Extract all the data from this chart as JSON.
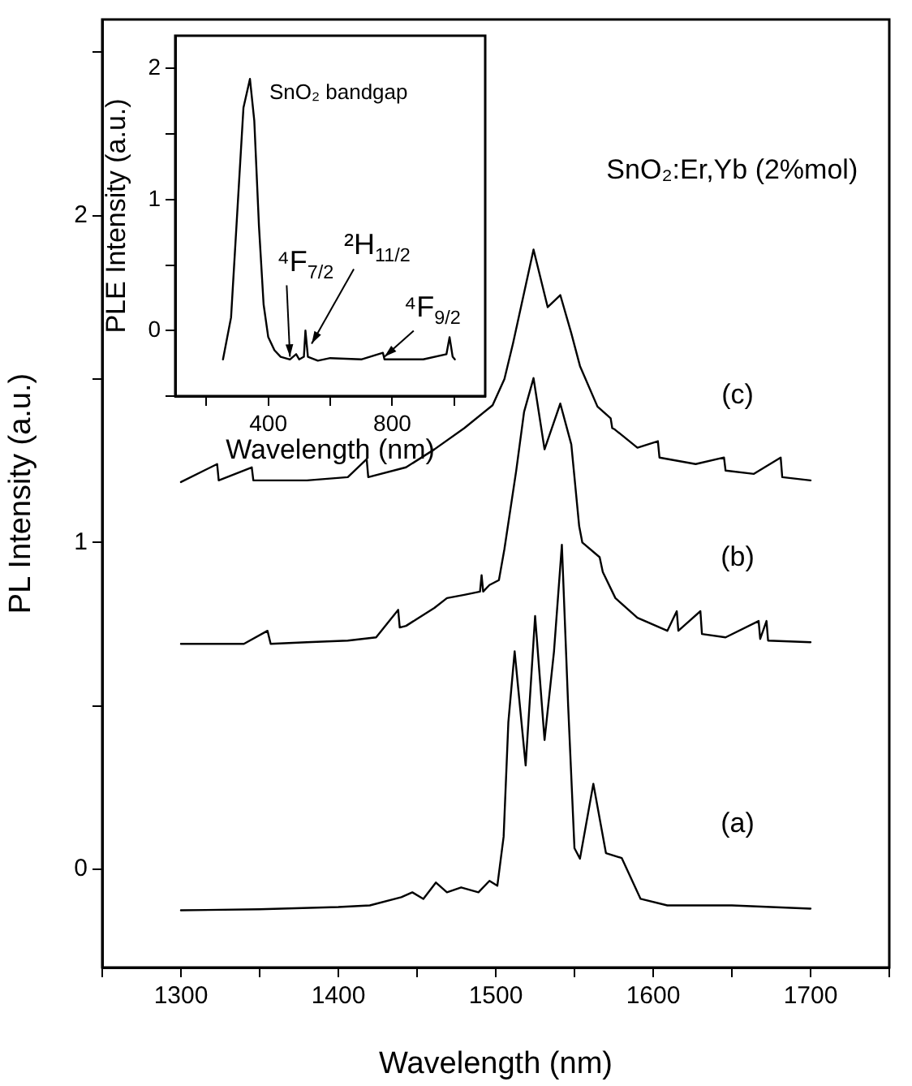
{
  "chart_data": [
    {
      "type": "line",
      "xlabel": "Wavelength (nm)",
      "ylabel": "PL Intensity (a.u.)",
      "xlim": [
        1250,
        1750
      ],
      "xticks": [
        {
          "value": 1250,
          "label": null
        },
        1300,
        {
          "value": 1350,
          "label": null
        },
        1400,
        {
          "value": 1450,
          "label": null
        },
        1500,
        {
          "value": 1550,
          "label": null
        },
        1600,
        {
          "value": 1650,
          "label": null
        },
        1700,
        {
          "value": 1750,
          "label": null
        }
      ],
      "ylim": [
        -0.3,
        2.6
      ],
      "yticks": [
        0,
        {
          "value": 0.5,
          "label": null
        },
        1,
        {
          "value": 1.5,
          "label": null
        },
        2,
        {
          "value": 2.5,
          "label": null
        }
      ],
      "series": [
        {
          "name": "(a)",
          "color": "#000000",
          "x": [
            1300,
            1350,
            1400,
            1420,
            1440,
            1447,
            1454,
            1462,
            1469,
            1478,
            1489,
            1496,
            1501,
            1505,
            1508,
            1512,
            1519,
            1525,
            1531,
            1537,
            1542,
            1546,
            1550,
            1553.5,
            1562,
            1570,
            1580,
            1592,
            1609,
            1650,
            1700
          ],
          "values": [
            -0.125,
            -0.122,
            -0.115,
            -0.11,
            -0.085,
            -0.07,
            -0.09,
            -0.04,
            -0.07,
            -0.055,
            -0.07,
            -0.035,
            -0.05,
            0.1,
            0.45,
            0.667,
            0.318,
            0.775,
            0.396,
            0.667,
            0.993,
            0.5,
            0.065,
            0.033,
            0.262,
            0.05,
            0.035,
            -0.09,
            -0.11,
            -0.11,
            -0.12
          ]
        },
        {
          "name": "(b)",
          "color": "#000000",
          "x": [
            1300,
            1340,
            1355,
            1357,
            1380,
            1406,
            1424,
            1438,
            1439,
            1443,
            1461,
            1469,
            1480,
            1490,
            1491,
            1492,
            1496,
            1502,
            1505.5,
            1513,
            1518,
            1524,
            1531,
            1541,
            1548,
            1553,
            1555,
            1566,
            1568,
            1576,
            1590,
            1609,
            1615,
            1616,
            1630,
            1631,
            1646,
            1667,
            1668,
            1672,
            1673,
            1700
          ],
          "values": [
            0.69,
            0.69,
            0.73,
            0.69,
            0.695,
            0.7,
            0.71,
            0.794,
            0.74,
            0.745,
            0.8,
            0.83,
            0.84,
            0.85,
            0.9,
            0.85,
            0.87,
            0.885,
            0.98,
            1.22,
            1.4,
            1.503,
            1.285,
            1.425,
            1.3,
            1.05,
            1.0,
            0.955,
            0.91,
            0.83,
            0.77,
            0.73,
            0.79,
            0.73,
            0.79,
            0.72,
            0.71,
            0.76,
            0.705,
            0.76,
            0.7,
            0.695
          ]
        },
        {
          "name": "(c)",
          "color": "#000000",
          "x": [
            1300,
            1323,
            1324,
            1345,
            1346,
            1380,
            1406,
            1418,
            1419,
            1443,
            1461,
            1480,
            1498,
            1505.5,
            1511,
            1524,
            1533,
            1541,
            1548,
            1553.5,
            1564.6,
            1573,
            1574,
            1575.6,
            1590,
            1603,
            1604,
            1627,
            1645,
            1646,
            1664,
            1681,
            1682,
            1700
          ],
          "values": [
            1.185,
            1.24,
            1.19,
            1.23,
            1.19,
            1.19,
            1.2,
            1.255,
            1.2,
            1.23,
            1.285,
            1.35,
            1.42,
            1.5,
            1.61,
            1.896,
            1.72,
            1.757,
            1.64,
            1.54,
            1.416,
            1.38,
            1.35,
            1.346,
            1.29,
            1.31,
            1.26,
            1.24,
            1.26,
            1.22,
            1.21,
            1.26,
            1.2,
            1.19
          ]
        }
      ],
      "annotations": [
        "SnO₂:Er,Yb (2%mol)"
      ]
    },
    {
      "type": "line",
      "xlabel": "Wavelength (nm)",
      "ylabel": "PLE Intensity (a.u.)",
      "xlim": [
        100,
        1100
      ],
      "xticks": [
        {
          "value": 200,
          "label": null
        },
        400,
        {
          "value": 600,
          "label": null
        },
        800,
        {
          "value": 1000,
          "label": null
        }
      ],
      "ylim": [
        -0.5,
        2.25
      ],
      "yticks": [
        {
          "value": -0.5,
          "label": null
        },
        0,
        {
          "value": 0.5,
          "label": null
        },
        1,
        {
          "value": 1.5,
          "label": null
        },
        2
      ],
      "series": [
        {
          "color": "#000000",
          "x": [
            254,
            280,
            300,
            320,
            341,
            355,
            370,
            385,
            400,
            420,
            440,
            470,
            490,
            500,
            515,
            520,
            528,
            560,
            600,
            700,
            770,
            775,
            900,
            975,
            985,
            995,
            1002
          ],
          "values": [
            -0.22,
            0.1,
            0.9,
            1.7,
            1.92,
            1.6,
            0.8,
            0.2,
            -0.05,
            -0.15,
            -0.2,
            -0.22,
            -0.18,
            -0.22,
            -0.2,
            0.0,
            -0.2,
            -0.23,
            -0.21,
            -0.22,
            -0.17,
            -0.22,
            -0.22,
            -0.18,
            -0.05,
            -0.2,
            -0.22
          ]
        }
      ],
      "annotations": [
        "SnO₂ bandgap",
        {
          "text": "⁴F$_{7/2}$",
          "x": 470,
          "y": -0.2
        },
        {
          "text": "²H$_{11/2}$",
          "x": 540,
          "y": -0.1
        },
        {
          "text": "⁴F$_{9/2}$",
          "x": 775,
          "y": -0.2
        }
      ]
    }
  ]
}
